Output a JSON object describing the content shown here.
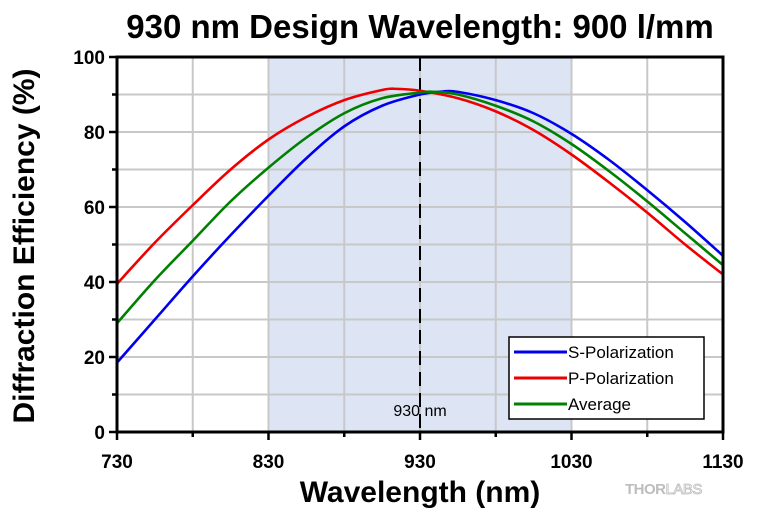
{
  "chart_data": {
    "type": "line",
    "title": "930 nm Design Wavelength: 900 l/mm",
    "xlabel": "Wavelength (nm)",
    "ylabel": "Diffraction Efficiency (%)",
    "xlim": [
      730,
      1130
    ],
    "ylim": [
      0,
      100
    ],
    "xticks": [
      730,
      830,
      930,
      1030,
      1130
    ],
    "xtick_labels": [
      "730",
      "830",
      "930",
      "1030",
      "1130"
    ],
    "xminor_ticks": [
      780,
      880,
      980,
      1080
    ],
    "yticks": [
      0,
      20,
      40,
      60,
      80,
      100
    ],
    "ytick_labels": [
      "0",
      "20",
      "40",
      "60",
      "80",
      "100"
    ],
    "yminor_ticks": [
      10,
      30,
      50,
      70,
      90
    ],
    "grid": true,
    "shaded_region": {
      "x_start": 830,
      "x_end": 1030,
      "color": "#dde4f4"
    },
    "reference_line": {
      "x": 930,
      "label": "930 nm",
      "style": "dashed"
    },
    "legend_position": "bottom-right",
    "series": [
      {
        "name": "S-Polarization",
        "color": "#0000ee",
        "x": [
          730,
          755,
          780,
          805,
          830,
          855,
          880,
          905,
          930,
          945,
          955,
          980,
          1005,
          1030,
          1055,
          1080,
          1105,
          1130
        ],
        "y": [
          18.5,
          30,
          41.5,
          52.5,
          63,
          73,
          81.5,
          87,
          90,
          90.8,
          90.7,
          88.5,
          85,
          79.5,
          72.5,
          64.5,
          56,
          47
        ]
      },
      {
        "name": "P-Polarization",
        "color": "#ee0000",
        "x": [
          730,
          755,
          780,
          805,
          830,
          855,
          880,
          905,
          915,
          930,
          955,
          980,
          1005,
          1030,
          1055,
          1080,
          1105,
          1130
        ],
        "y": [
          39.5,
          50.5,
          60.5,
          70,
          78,
          84,
          88.5,
          91.2,
          91.5,
          91,
          89,
          85.5,
          80.5,
          74,
          66.5,
          58.5,
          50,
          42
        ]
      },
      {
        "name": "Average",
        "color": "#008000",
        "x": [
          730,
          755,
          780,
          805,
          830,
          855,
          880,
          905,
          930,
          940,
          955,
          980,
          1005,
          1030,
          1055,
          1080,
          1105,
          1130
        ],
        "y": [
          29,
          40.5,
          51,
          61.5,
          70.5,
          78.5,
          85,
          89,
          90.5,
          90.7,
          90,
          87,
          82.8,
          76.8,
          69.5,
          61.5,
          53,
          44.5
        ]
      }
    ],
    "watermark": {
      "bold": "THOR",
      "light": "LABS"
    }
  }
}
